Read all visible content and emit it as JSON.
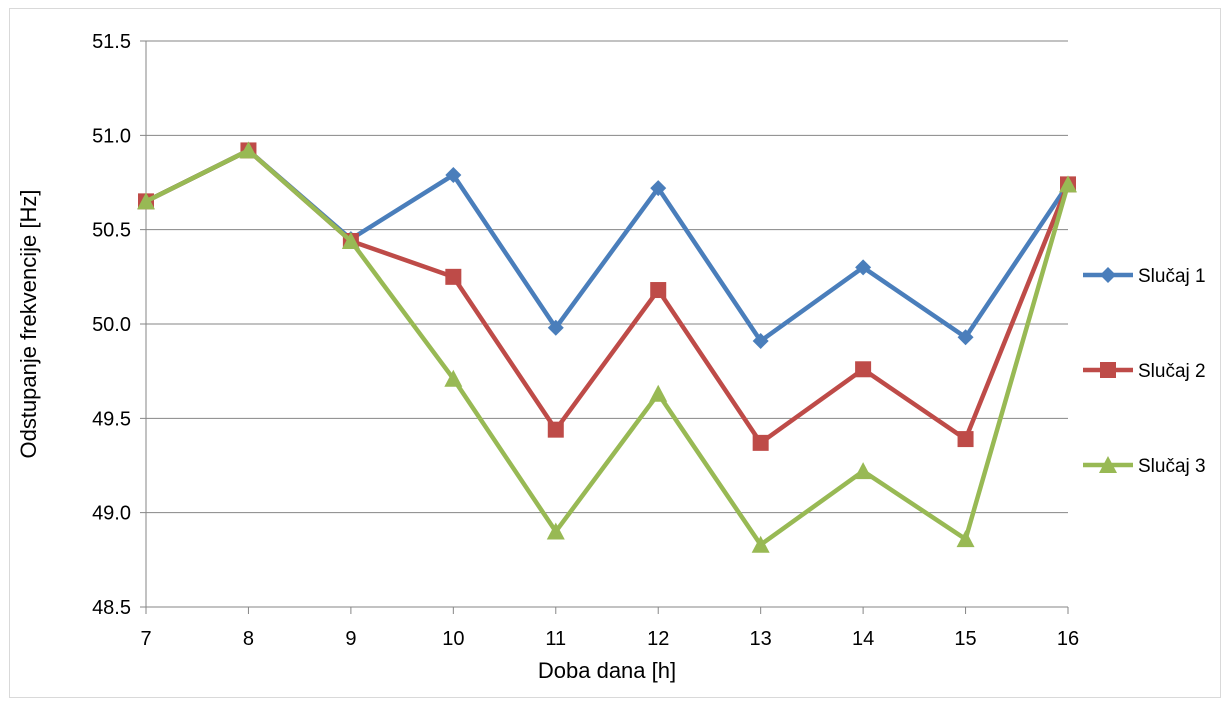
{
  "chart_data": {
    "type": "line",
    "xlabel": "Doba dana [h]",
    "ylabel": "Odstupanje frekvencije [Hz]",
    "x": [
      7,
      8,
      9,
      10,
      11,
      12,
      13,
      14,
      15,
      16
    ],
    "xlim": [
      7,
      16
    ],
    "ylim": [
      48.5,
      51.5
    ],
    "yticks": [
      "48.5",
      "49.0",
      "49.5",
      "50.0",
      "50.5",
      "51.0",
      "51.5"
    ],
    "xticks": [
      "7",
      "8",
      "9",
      "10",
      "11",
      "12",
      "13",
      "14",
      "15",
      "16"
    ],
    "grid": "horizontal",
    "legend": "right",
    "series": [
      {
        "name": "Slučaj 1",
        "color": "#4a7ebb",
        "marker": "diamond",
        "values": [
          50.65,
          50.92,
          50.45,
          50.79,
          49.98,
          50.72,
          49.91,
          50.3,
          49.93,
          50.74
        ]
      },
      {
        "name": "Slučaj 2",
        "color": "#be4b48",
        "marker": "square",
        "values": [
          50.65,
          50.92,
          50.44,
          50.25,
          49.44,
          50.18,
          49.37,
          49.76,
          49.39,
          50.74
        ]
      },
      {
        "name": "Slučaj 3",
        "color": "#98b954",
        "marker": "triangle",
        "values": [
          50.65,
          50.92,
          50.44,
          49.71,
          48.9,
          49.63,
          48.83,
          49.22,
          48.86,
          50.74
        ]
      }
    ]
  }
}
